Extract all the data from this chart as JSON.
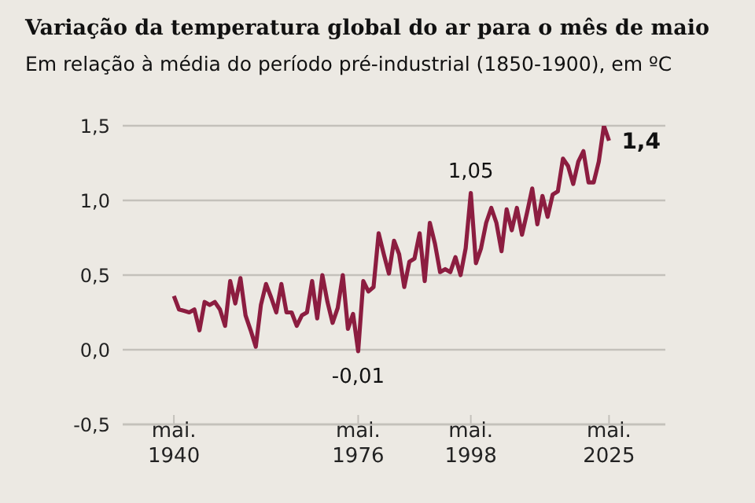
{
  "chart_data": {
    "type": "line",
    "title": "Variação da temperatura global do ar para o mês de maio",
    "subtitle": "Em relação à média do período pré-industrial (1850-1900), em ºC",
    "x": [
      1940,
      1941,
      1942,
      1943,
      1944,
      1945,
      1946,
      1947,
      1948,
      1949,
      1950,
      1951,
      1952,
      1953,
      1954,
      1955,
      1956,
      1957,
      1958,
      1959,
      1960,
      1961,
      1962,
      1963,
      1964,
      1965,
      1966,
      1967,
      1968,
      1969,
      1970,
      1971,
      1972,
      1973,
      1974,
      1975,
      1976,
      1977,
      1978,
      1979,
      1980,
      1981,
      1982,
      1983,
      1984,
      1985,
      1986,
      1987,
      1988,
      1989,
      1990,
      1991,
      1992,
      1993,
      1994,
      1995,
      1996,
      1997,
      1998,
      1999,
      2000,
      2001,
      2002,
      2003,
      2004,
      2005,
      2006,
      2007,
      2008,
      2009,
      2010,
      2011,
      2012,
      2013,
      2014,
      2015,
      2016,
      2017,
      2018,
      2019,
      2020,
      2021,
      2022,
      2023,
      2024,
      2025
    ],
    "series": [
      {
        "color": "#8c1d40",
        "values": [
          0.36,
          0.27,
          0.26,
          0.25,
          0.27,
          0.13,
          0.32,
          0.3,
          0.32,
          0.27,
          0.16,
          0.46,
          0.31,
          0.48,
          0.23,
          0.13,
          0.02,
          0.3,
          0.44,
          0.35,
          0.25,
          0.44,
          0.25,
          0.25,
          0.16,
          0.23,
          0.25,
          0.46,
          0.21,
          0.5,
          0.32,
          0.18,
          0.28,
          0.5,
          0.14,
          0.24,
          -0.01,
          0.46,
          0.39,
          0.42,
          0.78,
          0.64,
          0.51,
          0.73,
          0.64,
          0.42,
          0.59,
          0.61,
          0.78,
          0.46,
          0.85,
          0.71,
          0.52,
          0.54,
          0.52,
          0.62,
          0.5,
          0.68,
          1.05,
          0.58,
          0.68,
          0.85,
          0.95,
          0.85,
          0.66,
          0.94,
          0.8,
          0.95,
          0.77,
          0.92,
          1.08,
          0.84,
          1.03,
          0.89,
          1.04,
          1.06,
          1.28,
          1.23,
          1.11,
          1.26,
          1.33,
          1.12,
          1.12,
          1.26,
          1.5,
          1.4
        ]
      }
    ],
    "xlim": [
      1930,
      2036
    ],
    "xticks": [
      {
        "value": 1940,
        "label": "mai. 1940"
      },
      {
        "value": 1976,
        "label": "mai. 1976"
      },
      {
        "value": 1998,
        "label": "mai. 1998"
      },
      {
        "value": 2025,
        "label": "mai. 2025"
      }
    ],
    "ylim": [
      -0.5,
      1.5
    ],
    "yticks": [
      {
        "value": -0.5,
        "label": "-0,5"
      },
      {
        "value": 0,
        "label": "0,0"
      },
      {
        "value": 0.5,
        "label": "0,5"
      },
      {
        "value": 1,
        "label": "1,0"
      },
      {
        "value": 1.5,
        "label": "1,5"
      }
    ],
    "grid": "y",
    "annotations": [
      {
        "text": "-0,01",
        "x": 1976,
        "y": -0.01
      },
      {
        "text": "1,05",
        "x": 1998,
        "y": 1.05
      },
      {
        "text": "1,4",
        "x": 2025,
        "y": 1.4
      }
    ]
  }
}
